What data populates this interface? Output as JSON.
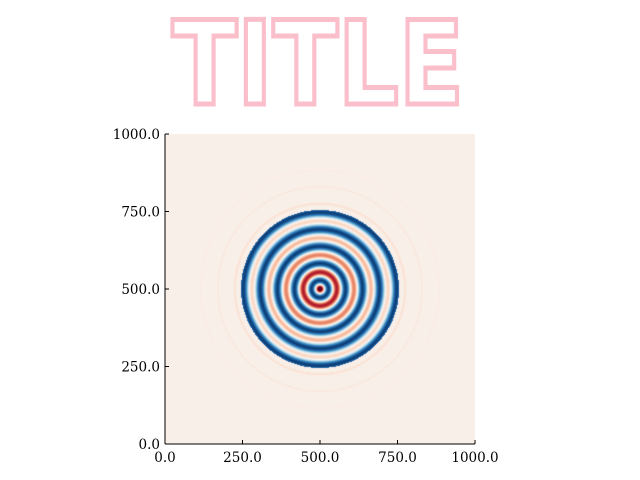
{
  "title": "TITLE",
  "colors": {
    "title": "#fbbfcc",
    "colormap": [
      "#67001f",
      "#b2182b",
      "#d6604d",
      "#f4a582",
      "#fddbc7",
      "#f7f7f7",
      "#d1e5f0",
      "#92c5de",
      "#4393c3",
      "#2166ac",
      "#053061"
    ]
  },
  "chart_data": {
    "type": "heatmap",
    "title": "TITLE",
    "xlabel": "",
    "ylabel": "",
    "xlim": [
      0,
      1000
    ],
    "ylim": [
      0,
      1000
    ],
    "xticks": [
      "0.0",
      "250.0",
      "500.0",
      "750.0",
      "1000.0"
    ],
    "yticks": [
      "0.0",
      "250.0",
      "500.0",
      "750.0",
      "1000.0"
    ],
    "colormap": "RdBu",
    "pattern": "concentric rings centered at (500, 500)",
    "center": [
      500,
      500
    ],
    "grid": false,
    "legend": "none"
  }
}
